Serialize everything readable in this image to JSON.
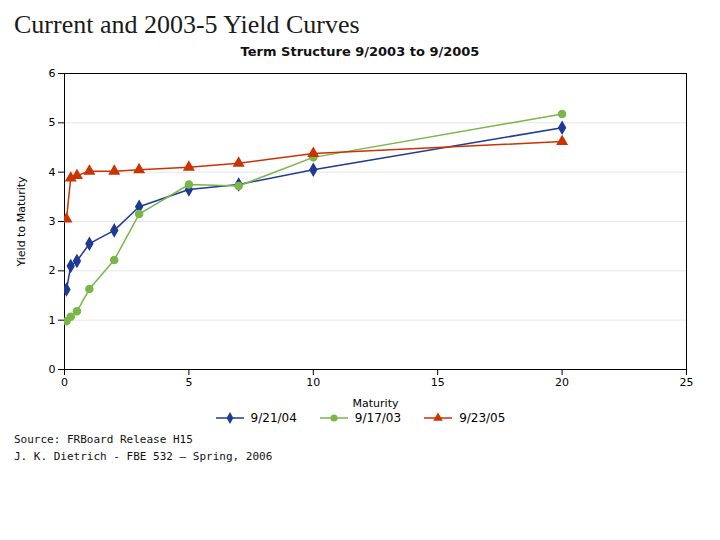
{
  "chart_data": {
    "type": "line",
    "title": "Current and 2003-5 Yield Curves",
    "subtitle": "Term Structure 9/2003 to 9/2005",
    "x_label": "Maturity",
    "y_label": "Yield to Maturity",
    "x": [
      0.08,
      0.25,
      0.5,
      1,
      2,
      3,
      5,
      7,
      10,
      20
    ],
    "series": [
      {
        "name": "9/21/04",
        "color": "#1F3A93",
        "marker": "diamond",
        "values": [
          1.62,
          2.1,
          2.2,
          2.55,
          2.82,
          3.3,
          3.65,
          3.75,
          4.05,
          4.9
        ]
      },
      {
        "name": "9/17/03",
        "color": "#7AB648",
        "marker": "circle",
        "values": [
          0.98,
          1.07,
          1.18,
          1.63,
          2.22,
          3.15,
          3.75,
          3.72,
          4.3,
          5.18
        ]
      },
      {
        "name": "9/23/05",
        "color": "#CC3300",
        "marker": "triangle",
        "values": [
          3.05,
          3.88,
          3.93,
          4.02,
          4.02,
          4.05,
          4.1,
          4.18,
          4.38,
          4.62
        ]
      }
    ],
    "xlim": [
      0,
      25
    ],
    "ylim": [
      0,
      6
    ],
    "xticks": [
      0,
      5,
      10,
      15,
      20,
      25
    ],
    "yticks": [
      0,
      1,
      2,
      3,
      4,
      5,
      6
    ],
    "grid": "y",
    "legend": "bottom",
    "annotations": [
      "Source: FRBoard Release H15",
      "J. K. Dietrich - FBE 532 – Spring, 2006"
    ]
  }
}
